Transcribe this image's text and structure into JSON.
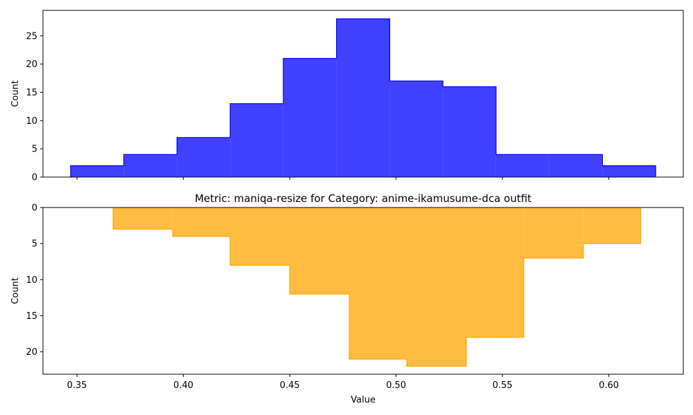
{
  "chart_data": [
    {
      "type": "histogram",
      "title": "",
      "xlabel": "",
      "ylabel": "Count",
      "xlim": [
        0.334,
        0.635
      ],
      "ylim": [
        0,
        29.5
      ],
      "y_inverted": false,
      "color": "#0000ff",
      "fill_opacity": 0.75,
      "bin_edges": [
        0.347,
        0.372,
        0.397,
        0.422,
        0.447,
        0.472,
        0.497,
        0.522,
        0.547,
        0.572,
        0.597,
        0.622
      ],
      "counts": [
        2,
        4,
        7,
        13,
        21,
        28,
        17,
        16,
        4,
        4,
        2
      ],
      "xticks": [],
      "yticks": [
        0,
        5,
        10,
        15,
        20,
        25
      ],
      "ytick_labels": [
        "0",
        "5",
        "10",
        "15",
        "20",
        "25"
      ]
    },
    {
      "type": "histogram",
      "title": "Metric: maniqa-resize for Category: anime-ikamusume-dca outfit",
      "xlabel": "Value",
      "ylabel": "Count",
      "xlim": [
        0.334,
        0.635
      ],
      "ylim": [
        0,
        23.1
      ],
      "y_inverted": true,
      "color": "#ffa500",
      "fill_opacity": 0.75,
      "bin_edges": [
        0.367,
        0.395,
        0.422,
        0.45,
        0.478,
        0.505,
        0.533,
        0.56,
        0.588,
        0.615
      ],
      "counts": [
        3,
        4,
        8,
        12,
        21,
        22,
        18,
        7,
        5
      ],
      "xticks": [
        0.35,
        0.4,
        0.45,
        0.5,
        0.55,
        0.6
      ],
      "xtick_labels": [
        "0.35",
        "0.40",
        "0.45",
        "0.50",
        "0.55",
        "0.60"
      ],
      "yticks": [
        0,
        5,
        10,
        15,
        20
      ],
      "ytick_labels": [
        "0",
        "5",
        "10",
        "15",
        "20"
      ]
    }
  ]
}
